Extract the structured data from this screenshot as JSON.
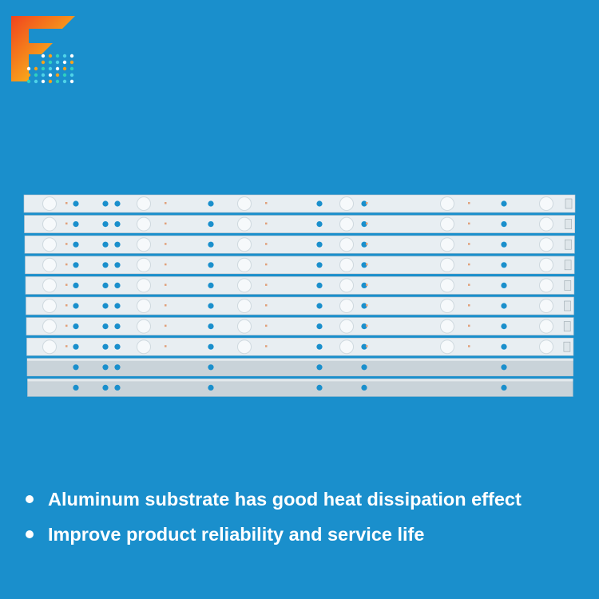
{
  "logo": {
    "icon": "f-brand-logo-icon",
    "colors": [
      "#f0431e",
      "#f7a21b",
      "#2fd0c0"
    ]
  },
  "product": {
    "led_strips": 8,
    "bare_strips": 2,
    "strip_color": "#e8eef2",
    "aluminum_color": "#c9d3d9",
    "hole_color": "#1a8fcc"
  },
  "bullets": [
    {
      "text": "Aluminum substrate has good heat dissipation effect"
    },
    {
      "text": "Improve product reliability and service life"
    }
  ]
}
